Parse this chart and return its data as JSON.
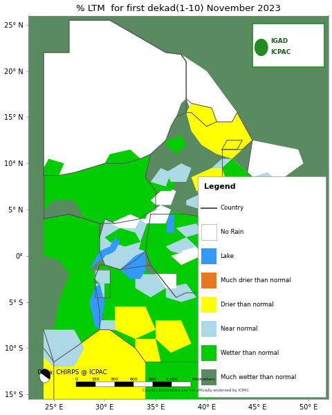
{
  "title": "% LTM  for first dekad(1-10) November 2023",
  "title_fontsize": 9.5,
  "xlim": [
    22.5,
    52
  ],
  "ylim": [
    -15.5,
    26
  ],
  "xticks": [
    25,
    30,
    35,
    40,
    45,
    50
  ],
  "yticks": [
    -15,
    -10,
    -5,
    0,
    5,
    10,
    15,
    20,
    25
  ],
  "background_color": "#ffffff",
  "ocean_color": "#ffffff",
  "colors": {
    "much_drier": "#e87820",
    "drier": "#ffff00",
    "near_normal": "#add8e6",
    "wetter": "#00cc00",
    "much_wetter": "#5a8a60",
    "lake": "#3399ff",
    "no_rain": "#ffffff",
    "country_border": "#555555",
    "map_bg": "#f5f5f5"
  },
  "legend_items": [
    {
      "label": "Country",
      "color": "#555555",
      "type": "line"
    },
    {
      "label": "No Rain",
      "color": "#ffffff",
      "type": "patch",
      "edgecolor": "#aaaaaa"
    },
    {
      "label": "Lake",
      "color": "#3399ff",
      "type": "patch"
    },
    {
      "label": "Much drier than normal",
      "color": "#e87820",
      "type": "patch"
    },
    {
      "label": "Drier than normal",
      "color": "#ffff00",
      "type": "patch"
    },
    {
      "label": "Near normal",
      "color": "#add8e6",
      "type": "patch"
    },
    {
      "label": "Wetter than normal",
      "color": "#00cc00",
      "type": "patch"
    },
    {
      "label": "Much wetter than normal",
      "color": "#5a8a60",
      "type": "patch"
    }
  ],
  "data_source": "Data: CHIRPS @ ICPAC",
  "disclaimer": "Country boundaries are not officially endorsed by ICPAC",
  "figsize": [
    4.81,
    6.0
  ],
  "dpi": 100
}
